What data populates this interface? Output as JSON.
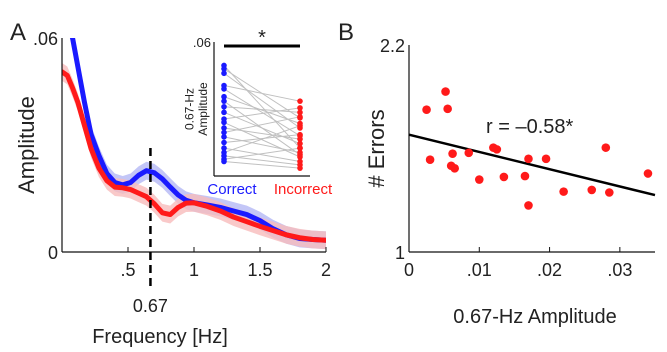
{
  "colors": {
    "blue": "#1a1aff",
    "red": "#ff1a1a",
    "blue_band": "#b4b8f5",
    "red_band": "#f7bcbc",
    "grey_line": "#c0c0c0",
    "axis": "#111111"
  },
  "chart_data": [
    {
      "panel_label": "A",
      "type": "line",
      "xlabel": "Frequency [Hz]",
      "ylabel": "Amplitude",
      "xlim": [
        0,
        2
      ],
      "ylim": [
        0,
        0.06
      ],
      "xticks": [
        {
          "value": 0.5,
          "label": ".5"
        },
        {
          "value": 1,
          "label": "1"
        },
        {
          "value": 1.5,
          "label": "1.5"
        },
        {
          "value": 2,
          "label": "2"
        }
      ],
      "yticks": [
        {
          "value": 0,
          "label": "0"
        },
        {
          "value": 0.06,
          "label": ".06"
        }
      ],
      "marker_line": {
        "x": 0.67,
        "label": "0.67"
      },
      "series": [
        {
          "color": "blue",
          "x": [
            0.03,
            0.08,
            0.12,
            0.17,
            0.22,
            0.28,
            0.34,
            0.4,
            0.46,
            0.52,
            0.58,
            0.64,
            0.7,
            0.76,
            0.82,
            0.88,
            0.94,
            1.0,
            1.1,
            1.2,
            1.3,
            1.4,
            1.5,
            1.6,
            1.7,
            1.8,
            1.9,
            2.0
          ],
          "y": [
            0.066,
            0.06,
            0.052,
            0.042,
            0.033,
            0.027,
            0.022,
            0.0195,
            0.0188,
            0.0195,
            0.0215,
            0.0228,
            0.0222,
            0.0205,
            0.0182,
            0.016,
            0.0145,
            0.0138,
            0.0132,
            0.0125,
            0.0115,
            0.0105,
            0.0088,
            0.0065,
            0.0048,
            0.0038,
            0.0035,
            0.0033
          ],
          "band": 0.0025
        },
        {
          "color": "red",
          "x": [
            0.0,
            0.04,
            0.08,
            0.12,
            0.17,
            0.22,
            0.28,
            0.34,
            0.4,
            0.46,
            0.52,
            0.58,
            0.64,
            0.7,
            0.76,
            0.82,
            0.88,
            0.94,
            1.0,
            1.1,
            1.2,
            1.3,
            1.4,
            1.5,
            1.6,
            1.7,
            1.8,
            1.9,
            2.0
          ],
          "y": [
            0.0505,
            0.0495,
            0.046,
            0.042,
            0.0355,
            0.029,
            0.0235,
            0.02,
            0.0182,
            0.018,
            0.0175,
            0.0165,
            0.0155,
            0.0135,
            0.011,
            0.0105,
            0.0125,
            0.0137,
            0.0138,
            0.0128,
            0.0115,
            0.0098,
            0.0085,
            0.0072,
            0.006,
            0.0048,
            0.004,
            0.0035,
            0.0033
          ],
          "band": 0.0025
        }
      ],
      "inset": {
        "type": "scatter",
        "ylabel": "0.67-Hz\nAmplitude",
        "ylim": [
          0,
          0.06
        ],
        "yticks": [
          {
            "value": 0.06,
            "label": ".06"
          }
        ],
        "categories": [
          "Correct",
          "Incorrect"
        ],
        "significance": "*",
        "pairs": [
          [
            0.0495,
            0.0125
          ],
          [
            0.048,
            0.026
          ],
          [
            0.046,
            0.0215
          ],
          [
            0.0405,
            0.0335
          ],
          [
            0.039,
            0.018
          ],
          [
            0.0355,
            0.0235
          ],
          [
            0.0335,
            0.0095
          ],
          [
            0.031,
            0.0285
          ],
          [
            0.0285,
            0.0145
          ],
          [
            0.0255,
            0.0305
          ],
          [
            0.024,
            0.0085
          ],
          [
            0.0215,
            0.0165
          ],
          [
            0.0195,
            0.0265
          ],
          [
            0.0175,
            0.0105
          ],
          [
            0.015,
            0.0185
          ],
          [
            0.0125,
            0.0065
          ],
          [
            0.0105,
            0.0225
          ],
          [
            0.009,
            0.005
          ],
          [
            0.0075,
            0.0125
          ],
          [
            0.0065,
            0.0035
          ]
        ]
      }
    },
    {
      "panel_label": "B",
      "type": "scatter",
      "xlabel": "0.67-Hz Amplitude",
      "ylabel": "# Errors",
      "xlim": [
        0,
        0.035
      ],
      "ylim": [
        1,
        2.2
      ],
      "xticks": [
        {
          "value": 0,
          "label": "0"
        },
        {
          "value": 0.01,
          "label": ".01"
        },
        {
          "value": 0.02,
          "label": ".02"
        },
        {
          "value": 0.03,
          "label": ".03"
        }
      ],
      "yticks": [
        {
          "value": 1,
          "label": "1"
        },
        {
          "value": 2.2,
          "label": "2.2"
        }
      ],
      "annotation": "r = –0.58*",
      "points": [
        [
          0.0025,
          1.825
        ],
        [
          0.0052,
          1.93
        ],
        [
          0.0055,
          1.83
        ],
        [
          0.003,
          1.535
        ],
        [
          0.006,
          1.5
        ],
        [
          0.0062,
          1.57
        ],
        [
          0.0065,
          1.485
        ],
        [
          0.0085,
          1.575
        ],
        [
          0.01,
          1.42
        ],
        [
          0.012,
          1.605
        ],
        [
          0.0125,
          1.595
        ],
        [
          0.0135,
          1.435
        ],
        [
          0.0165,
          1.44
        ],
        [
          0.017,
          1.54
        ],
        [
          0.017,
          1.27
        ],
        [
          0.0195,
          1.54
        ],
        [
          0.022,
          1.35
        ],
        [
          0.026,
          1.36
        ],
        [
          0.028,
          1.605
        ],
        [
          0.0285,
          1.345
        ],
        [
          0.034,
          1.455
        ]
      ],
      "fit_line": {
        "x": [
          0,
          0.035
        ],
        "y": [
          1.68,
          1.33
        ]
      }
    }
  ]
}
